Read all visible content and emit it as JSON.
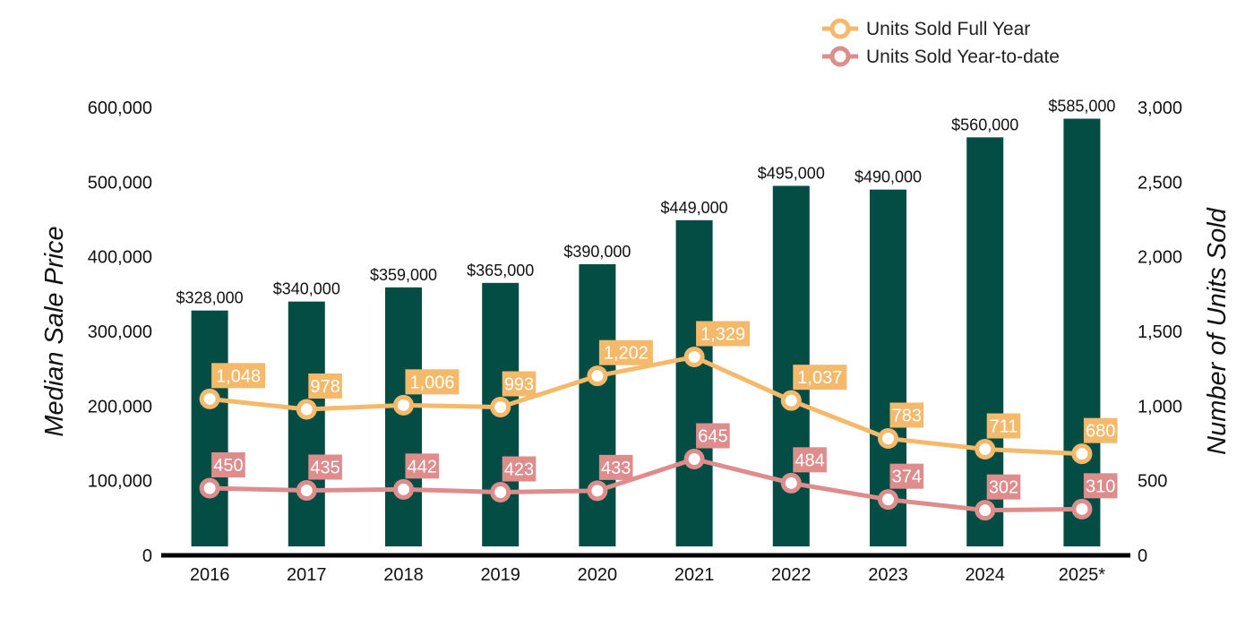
{
  "chart_data": {
    "type": "bar",
    "categories": [
      "2016",
      "2017",
      "2018",
      "2019",
      "2020",
      "2021",
      "2022",
      "2023",
      "2024",
      "2025*"
    ],
    "ylabel": "Median Sale Price",
    "y2label": "Number of Units Sold",
    "ylim": [
      0,
      600000
    ],
    "y2lim": [
      0,
      3000
    ],
    "yticks": [
      "0",
      "100,000",
      "200,000",
      "300,000",
      "400,000",
      "500,000",
      "600,000"
    ],
    "y2ticks": [
      "0",
      "500",
      "1,000",
      "1,500",
      "2,000",
      "2,500",
      "3,000"
    ],
    "bars": {
      "values": [
        328000,
        340000,
        359000,
        365000,
        390000,
        449000,
        495000,
        490000,
        560000,
        585000
      ],
      "labels": [
        "$328,000",
        "$340,000",
        "$359,000",
        "$365,000",
        "$390,000",
        "$449,000",
        "$495,000",
        "$490,000",
        "$560,000",
        "$585,000"
      ],
      "color": "#044d44"
    },
    "series": [
      {
        "name": "Units Sold Full Year",
        "axis": "right",
        "color": "#f5b96b",
        "values": [
          1048,
          978,
          1006,
          993,
          1202,
          1329,
          1037,
          783,
          711,
          680
        ],
        "labels": [
          "1,048",
          "978",
          "1,006",
          "993",
          "1,202",
          "1,329",
          "1,037",
          "783",
          "711",
          "680"
        ]
      },
      {
        "name": "Units Sold Year-to-date",
        "axis": "right",
        "color": "#de8c8c",
        "values": [
          450,
          435,
          442,
          423,
          433,
          645,
          484,
          374,
          302,
          310
        ],
        "labels": [
          "450",
          "435",
          "442",
          "423",
          "433",
          "645",
          "484",
          "374",
          "302",
          "310"
        ]
      }
    ],
    "legend_position": "top-right",
    "grid": false
  }
}
